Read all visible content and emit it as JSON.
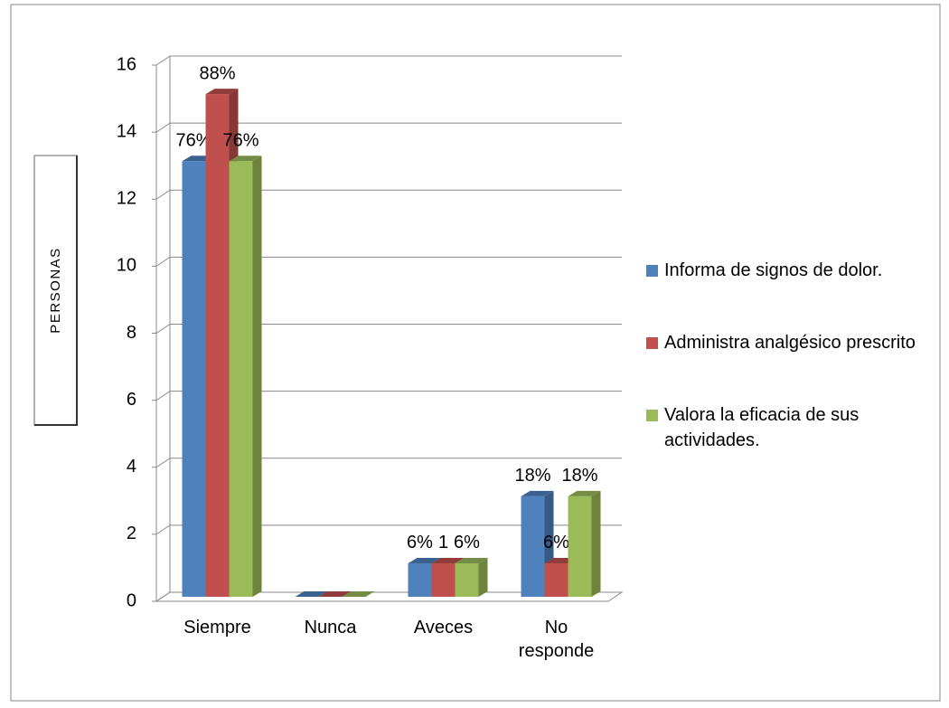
{
  "chart_data": {
    "type": "bar3d",
    "y_label": "PERSONAS",
    "categories": [
      "Siempre",
      "Nunca",
      "Aveces",
      "No responde"
    ],
    "series": [
      {
        "name": "Informa de signos de dolor.",
        "color": "#4f81bd",
        "values": [
          13,
          0,
          1,
          3
        ],
        "labels": [
          "76%",
          null,
          "6%",
          "18%"
        ]
      },
      {
        "name": "Administra analgésico prescrito",
        "color": "#c0504d",
        "values": [
          15,
          0,
          1,
          1
        ],
        "labels": [
          "88%",
          null,
          "1",
          "6%"
        ]
      },
      {
        "name": "Valora la eficacia de sus actividades.",
        "color": "#9bbb59",
        "values": [
          13,
          0,
          1,
          3
        ],
        "labels": [
          "76%",
          null,
          "6%",
          "18%"
        ]
      }
    ],
    "ylim": [
      0,
      16
    ],
    "yticks": [
      0,
      2,
      4,
      6,
      8,
      10,
      12,
      14,
      16
    ],
    "grid": true,
    "legend": "right"
  }
}
